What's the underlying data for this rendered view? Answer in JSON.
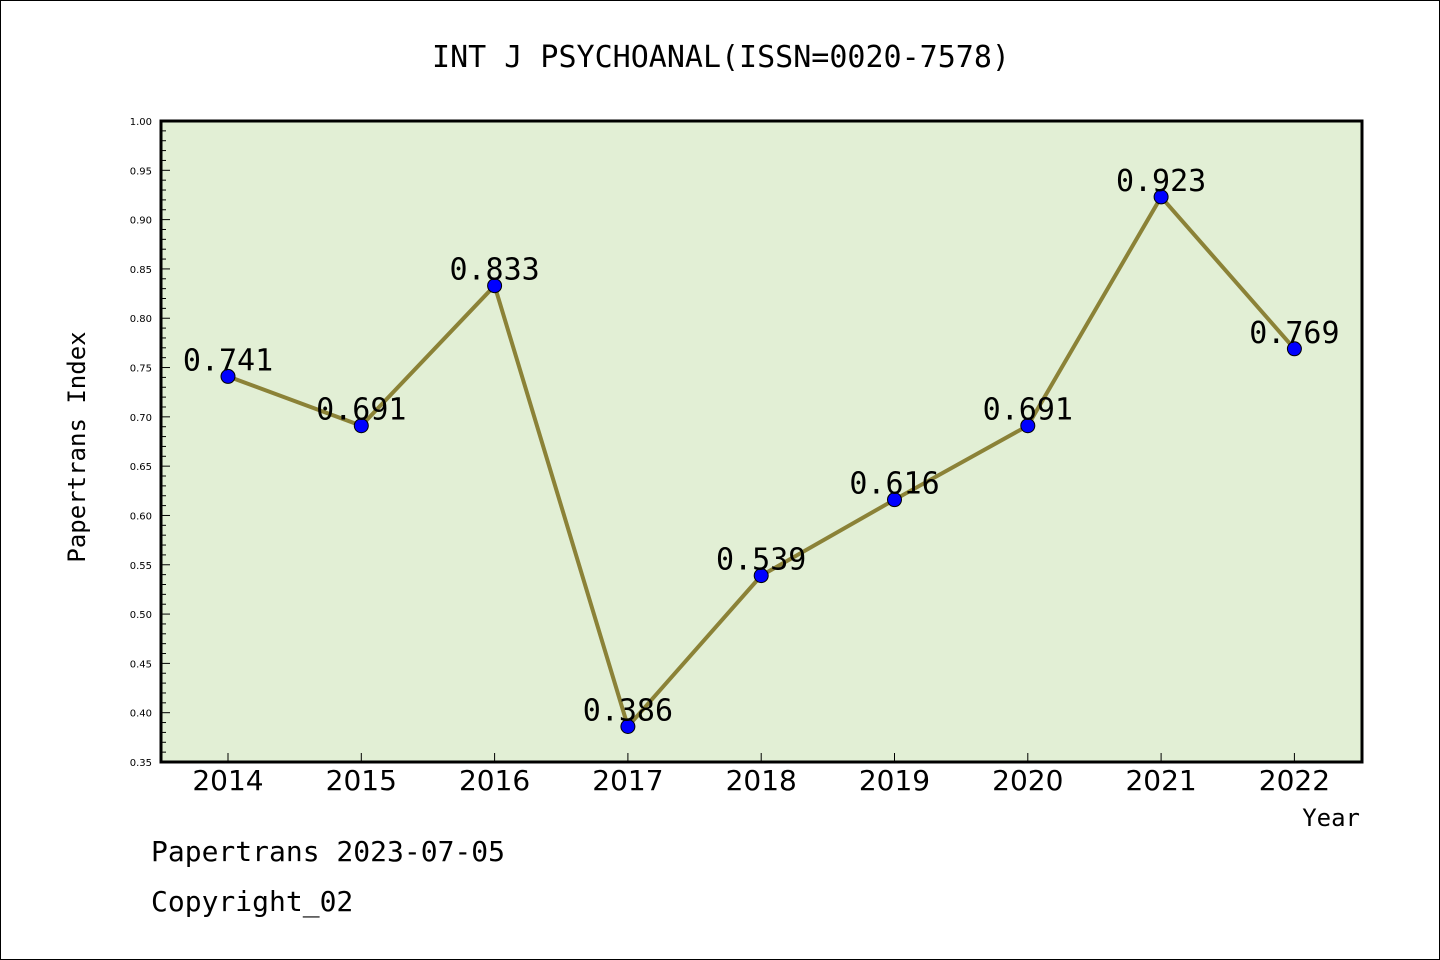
{
  "chart_data": {
    "type": "line",
    "title": "INT J PSYCHOANAL(ISSN=0020-7578)",
    "xlabel": "Year",
    "ylabel": "Papertrans Index",
    "categories": [
      "2014",
      "2015",
      "2016",
      "2017",
      "2018",
      "2019",
      "2020",
      "2021",
      "2022"
    ],
    "values": [
      0.741,
      0.691,
      0.833,
      0.386,
      0.539,
      0.616,
      0.691,
      0.923,
      0.769
    ],
    "data_labels": [
      "0.741",
      "0.691",
      "0.833",
      "0.386",
      "0.539",
      "0.616",
      "0.691",
      "0.923",
      "0.769"
    ],
    "ylim": [
      0.35,
      1.0
    ],
    "yticks": [
      "0.35",
      "0.40",
      "0.45",
      "0.50",
      "0.55",
      "0.60",
      "0.65",
      "0.70",
      "0.75",
      "0.80",
      "0.85",
      "0.90",
      "0.95",
      "1.00"
    ],
    "grid": false,
    "colors": {
      "plot_background": "#e2efd5",
      "line": "#8b8237",
      "marker": "#0000ff"
    }
  },
  "footer": {
    "date_line": "Papertrans 2023-07-05",
    "copyright": "Copyright_02"
  }
}
